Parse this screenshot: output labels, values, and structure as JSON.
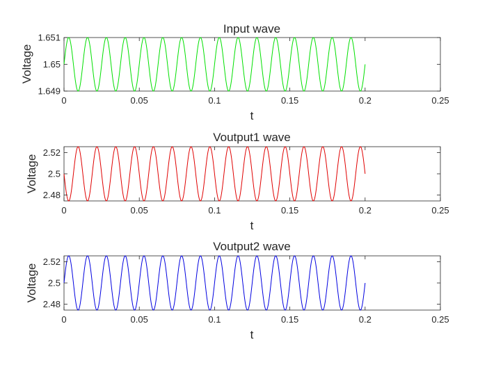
{
  "chart_data": [
    {
      "type": "line",
      "title": "Input wave",
      "xlabel": "t",
      "ylabel": "Voltage",
      "xlim": [
        0,
        0.25
      ],
      "ylim": [
        1.649,
        1.651
      ],
      "xticks": [
        0,
        0.05,
        0.1,
        0.15,
        0.2,
        0.25
      ],
      "xtick_labels": [
        "0",
        "0.05",
        "0.1",
        "0.15",
        "0.2",
        "0.25"
      ],
      "yticks": [
        1.649,
        1.65,
        1.651
      ],
      "ytick_labels": [
        "1.649",
        "1.65",
        "1.651"
      ],
      "grid": false,
      "series": [
        {
          "color": "#00e000",
          "signal": {
            "kind": "sine",
            "offset": 1.65,
            "amplitude": 0.001,
            "frequency": 80,
            "phase_deg": 0,
            "t_start": 0,
            "t_end": 0.2
          }
        }
      ]
    },
    {
      "type": "line",
      "title": "Voutput1 wave",
      "xlabel": "t",
      "ylabel": "Voltage",
      "xlim": [
        0,
        0.25
      ],
      "ylim": [
        2.4745,
        2.5255
      ],
      "xticks": [
        0,
        0.05,
        0.1,
        0.15,
        0.2,
        0.25
      ],
      "xtick_labels": [
        "0",
        "0.05",
        "0.1",
        "0.15",
        "0.2",
        "0.25"
      ],
      "yticks": [
        2.48,
        2.5,
        2.52
      ],
      "ytick_labels": [
        "2.48",
        "2.5",
        "2.52"
      ],
      "grid": false,
      "series": [
        {
          "color": "#e00000",
          "signal": {
            "kind": "sine",
            "offset": 2.5,
            "amplitude": 0.0255,
            "frequency": 80,
            "phase_deg": 180,
            "t_start": 0,
            "t_end": 0.2
          }
        }
      ]
    },
    {
      "type": "line",
      "title": "Voutput2 wave",
      "xlabel": "t",
      "ylabel": "Voltage",
      "xlim": [
        0,
        0.25
      ],
      "ylim": [
        2.4745,
        2.5255
      ],
      "xticks": [
        0,
        0.05,
        0.1,
        0.15,
        0.2,
        0.25
      ],
      "xtick_labels": [
        "0",
        "0.05",
        "0.1",
        "0.15",
        "0.2",
        "0.25"
      ],
      "yticks": [
        2.48,
        2.5,
        2.52
      ],
      "ytick_labels": [
        "2.48",
        "2.5",
        "2.52"
      ],
      "grid": false,
      "series": [
        {
          "color": "#0000e0",
          "signal": {
            "kind": "sine",
            "offset": 2.5,
            "amplitude": 0.0255,
            "frequency": 80,
            "phase_deg": 0,
            "t_start": 0,
            "t_end": 0.2
          }
        }
      ]
    }
  ]
}
